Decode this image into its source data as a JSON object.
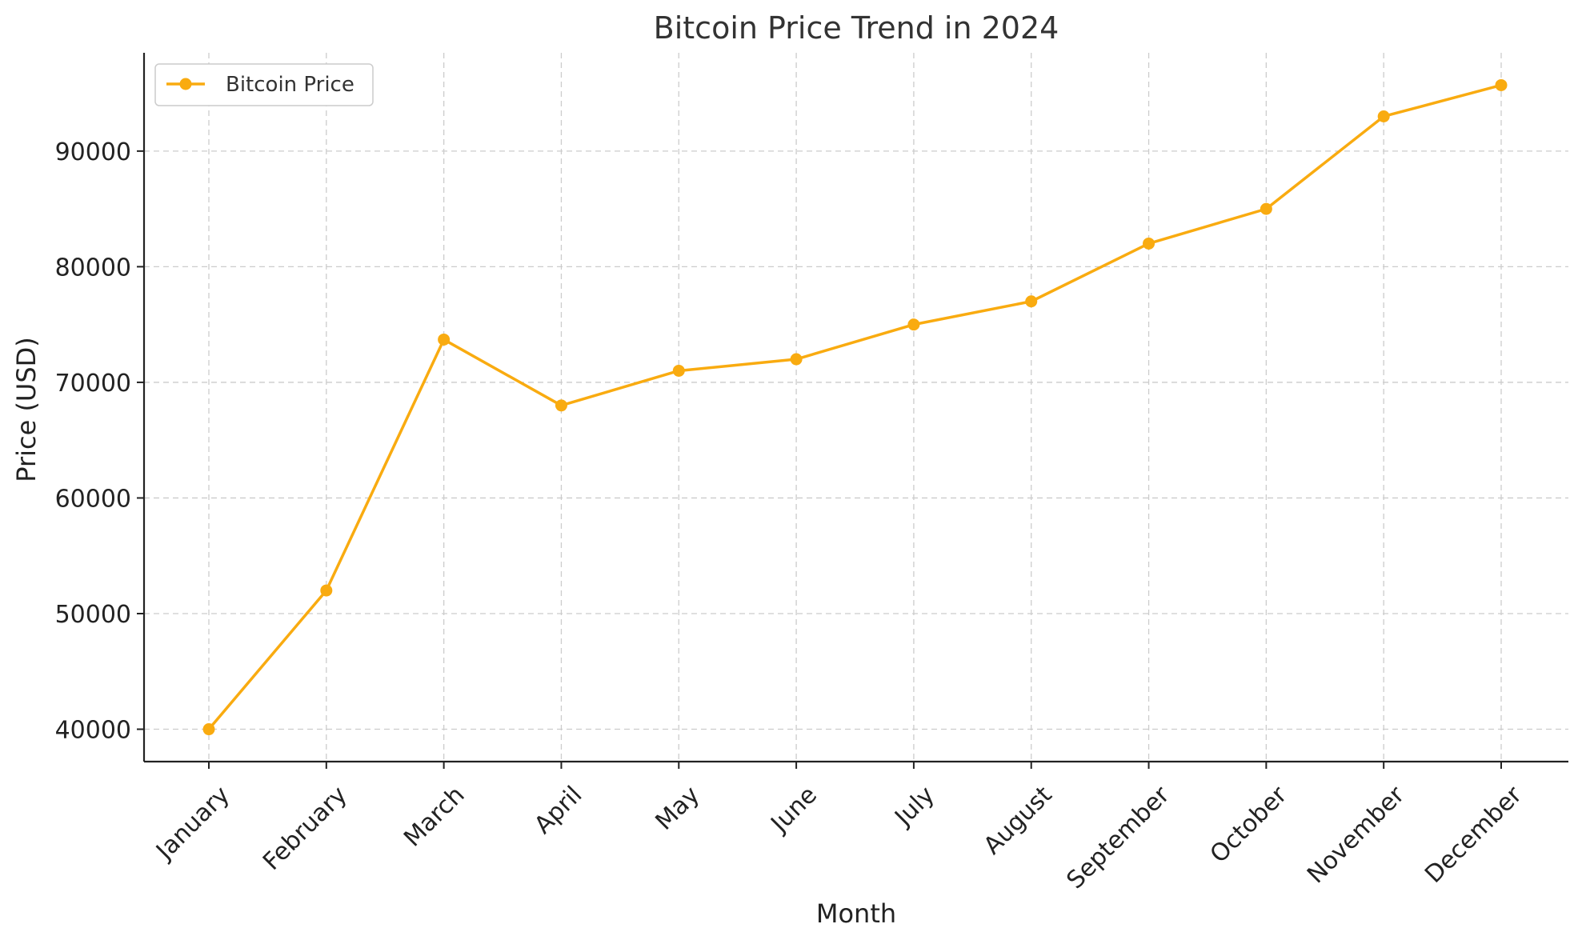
{
  "chart_data": {
    "type": "line",
    "title": "Bitcoin Price Trend in 2024",
    "xlabel": "Month",
    "ylabel": "Price (USD)",
    "categories": [
      "January",
      "February",
      "March",
      "April",
      "May",
      "June",
      "July",
      "August",
      "September",
      "October",
      "November",
      "December"
    ],
    "series": [
      {
        "name": "Bitcoin Price",
        "color": "#f9ab10",
        "marker": "circle",
        "values": [
          40000,
          52000,
          73700,
          68000,
          71000,
          72000,
          75000,
          77000,
          82000,
          85000,
          93000,
          95700
        ]
      }
    ],
    "ylim": [
      37200,
      98500
    ],
    "yticks": [
      40000,
      50000,
      60000,
      70000,
      80000,
      90000
    ],
    "ytick_labels": [
      "40000",
      "50000",
      "60000",
      "70000",
      "80000",
      "90000"
    ],
    "grid": true,
    "legend_position": "top-left"
  }
}
